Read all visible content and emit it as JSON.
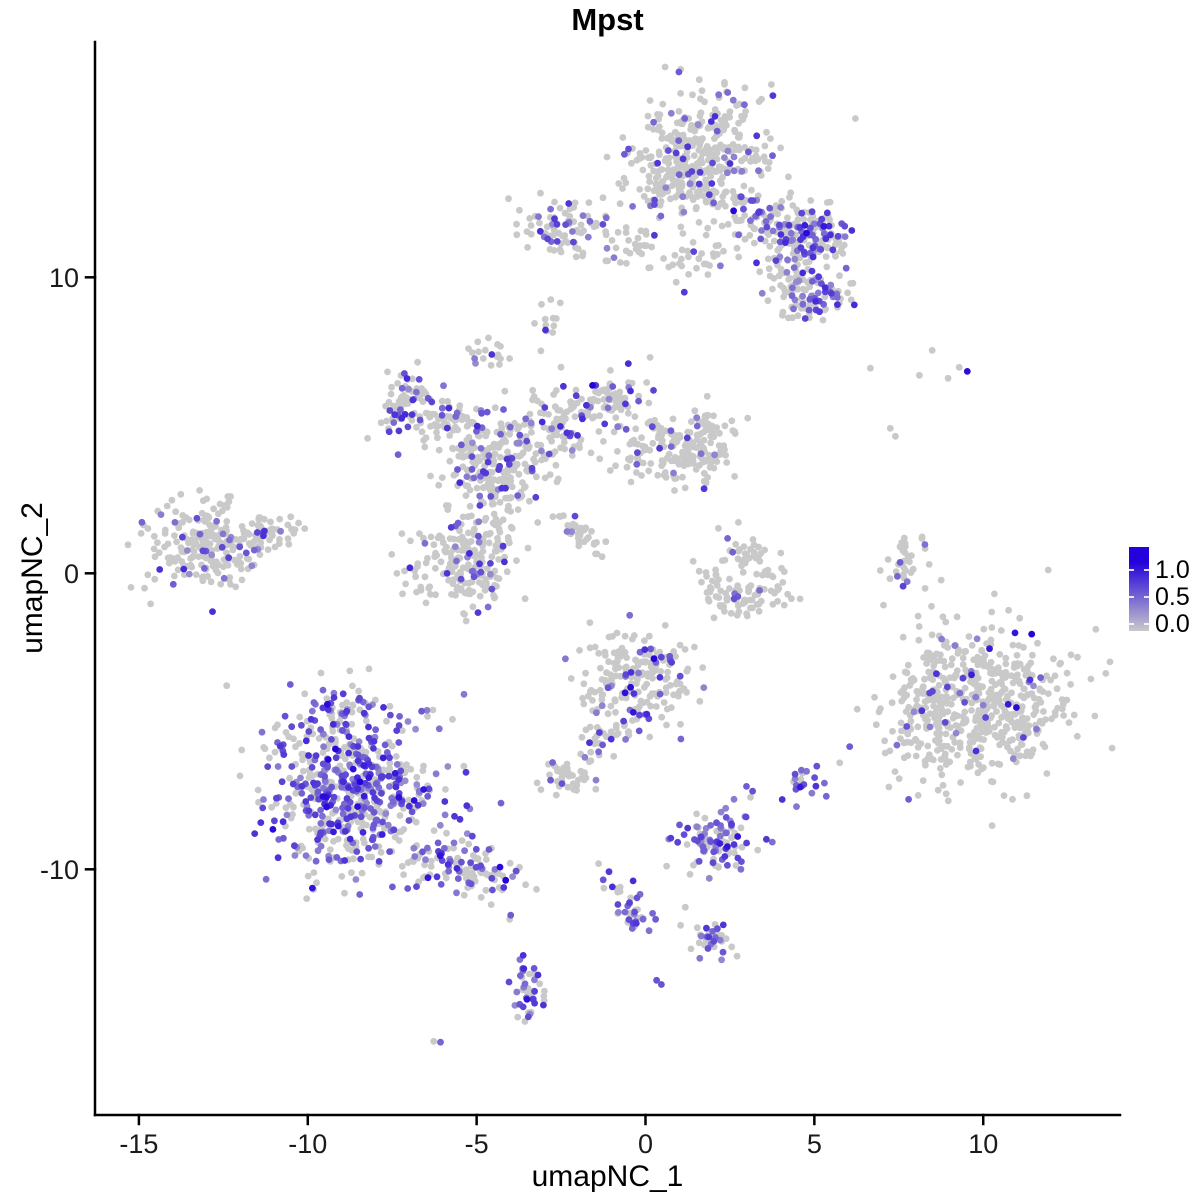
{
  "title": "Mpst",
  "axes": {
    "x": {
      "label": "umapNC_1",
      "ticks": [
        -15,
        -10,
        -5,
        0,
        5,
        10
      ]
    },
    "y": {
      "label": "umapNC_2",
      "ticks": [
        -10,
        0,
        10
      ]
    }
  },
  "legend": {
    "tick_labels": [
      "1.0",
      "0.5",
      "0.0"
    ],
    "tick_values": [
      1.0,
      0.5,
      0.0
    ],
    "color_low": "#c9c9c9",
    "color_high": "#2302db"
  },
  "style": {
    "point_color_zero": "#c9c9c9",
    "point_color_max": "#2302db",
    "axis_color": "#000000",
    "tick_label_color": "#1a1a1a",
    "background": "#ffffff"
  },
  "chart_data": {
    "type": "scatter",
    "title": "Mpst",
    "xlabel": "umapNC_1",
    "ylabel": "umapNC_2",
    "xlim": [
      -16.3,
      14.05
    ],
    "ylim": [
      -18.3,
      17.95
    ],
    "x_ticks": [
      -15,
      -10,
      -5,
      0,
      5,
      10
    ],
    "y_ticks": [
      -10,
      0,
      10
    ],
    "grid": false,
    "legend_position": "right",
    "color_scale": {
      "low": "#c9c9c9",
      "high": "#2302db",
      "ticks": [
        1.0,
        0.5,
        0.0
      ],
      "min": 0.0,
      "max": 1.0
    },
    "point_radius_px": 3.4,
    "seed": 42,
    "clusters": [
      {
        "name": "top-main",
        "shape": "blob",
        "cx": 1.63,
        "cy": 14.29,
        "sx": 1.07,
        "sy": 1.01,
        "n": 300,
        "fe": 0.12,
        "fh": 0.01
      },
      {
        "name": "top-left-lobe",
        "shape": "blob",
        "cx": 0.74,
        "cy": 13.11,
        "sx": 0.74,
        "sy": 0.68,
        "n": 110,
        "fe": 0.1,
        "fh": 0.005
      },
      {
        "name": "top-arm",
        "shape": "line",
        "x1": 2.51,
        "y1": 12.43,
        "x2": 5.18,
        "y2": 11.25,
        "w": 0.55,
        "n": 150,
        "fe": 0.3,
        "fh": 0.01
      },
      {
        "name": "top-right-lobe",
        "shape": "blob",
        "cx": 5.03,
        "cy": 11.42,
        "sx": 0.53,
        "sy": 0.47,
        "n": 80,
        "fe": 0.45,
        "fh": 0.02
      },
      {
        "name": "top-lower-lobe",
        "shape": "blob",
        "cx": 4.94,
        "cy": 9.56,
        "sx": 0.62,
        "sy": 0.47,
        "n": 90,
        "fe": 0.35,
        "fh": 0.01
      },
      {
        "name": "top-neck",
        "shape": "line",
        "x1": 4.08,
        "y1": 10.74,
        "x2": 4.64,
        "y2": 9.29,
        "w": 0.4,
        "n": 40,
        "fe": 0.2,
        "fh": 0
      },
      {
        "name": "top-bridge",
        "shape": "line",
        "x1": -1.18,
        "y1": 11.18,
        "x2": 0.3,
        "y2": 10.98,
        "w": 0.3,
        "n": 25,
        "fe": 0.05,
        "fh": 0
      },
      {
        "name": "top-underscatter",
        "shape": "blob",
        "cx": 1.42,
        "cy": 10.57,
        "sx": 0.62,
        "sy": 0.41,
        "n": 35,
        "fe": 0.1,
        "fh": 0
      },
      {
        "name": "upper-left-small",
        "shape": "blob",
        "cx": -2.37,
        "cy": 11.59,
        "sx": 0.65,
        "sy": 0.44,
        "n": 85,
        "fe": 0.22,
        "fh": 0
      },
      {
        "name": "tiny-blob-left",
        "shape": "blob",
        "cx": -2.9,
        "cy": 8.68,
        "sx": 0.21,
        "sy": 0.3,
        "n": 12,
        "fe": 0.1,
        "fh": 0
      },
      {
        "name": "mid-ul-lobe",
        "shape": "blob",
        "cx": -7.1,
        "cy": 5.57,
        "sx": 0.47,
        "sy": 0.61,
        "n": 80,
        "fe": 0.3,
        "fh": 0
      },
      {
        "name": "mid-bridge",
        "shape": "line",
        "x1": -6.42,
        "y1": 5.03,
        "x2": -5.24,
        "y2": 5.17,
        "w": 0.35,
        "n": 45,
        "fe": 0.1,
        "fh": 0
      },
      {
        "name": "mid-core",
        "shape": "blob",
        "cx": -4.29,
        "cy": 3.99,
        "sx": 0.83,
        "sy": 0.68,
        "n": 200,
        "fe": 0.2,
        "fh": 0.005
      },
      {
        "name": "mid-top-blob",
        "shape": "blob",
        "cx": -4.59,
        "cy": 7.53,
        "sx": 0.3,
        "sy": 0.27,
        "n": 18,
        "fe": 0.3,
        "fh": 0
      },
      {
        "name": "mid-column",
        "shape": "line",
        "x1": -4.14,
        "y1": 3.41,
        "x2": -5.03,
        "y2": 0.61,
        "w": 0.6,
        "n": 120,
        "fe": 0.15,
        "fh": 0
      },
      {
        "name": "mid-lower-lobe",
        "shape": "blob",
        "cx": -5.53,
        "cy": 0.1,
        "sx": 0.8,
        "sy": 0.74,
        "n": 150,
        "fe": 0.12,
        "fh": 0
      },
      {
        "name": "mid-branch-ne",
        "shape": "line",
        "x1": -2.75,
        "y1": 4.43,
        "x2": -1.15,
        "y2": 6.18,
        "w": 0.4,
        "n": 80,
        "fe": 0.15,
        "fh": 0
      },
      {
        "name": "mid-up-blob",
        "shape": "blob",
        "cx": -0.74,
        "cy": 5.84,
        "sx": 0.41,
        "sy": 0.41,
        "n": 50,
        "fe": 0.15,
        "fh": 0
      },
      {
        "name": "mid-arm-east",
        "shape": "line",
        "x1": -0.8,
        "y1": 3.99,
        "x2": 1.33,
        "y2": 4.43,
        "w": 0.5,
        "n": 80,
        "fe": 0.08,
        "fh": 0
      },
      {
        "name": "mid-east-blob",
        "shape": "blob",
        "cx": 1.63,
        "cy": 4.26,
        "sx": 0.59,
        "sy": 0.57,
        "n": 120,
        "fe": 0.05,
        "fh": 0
      },
      {
        "name": "mid-streak",
        "shape": "line",
        "x1": -2.63,
        "y1": 1.93,
        "x2": -1.33,
        "y2": 0.68,
        "w": 0.18,
        "n": 40,
        "fe": 0.06,
        "fh": 0
      },
      {
        "name": "mid-upper-scatter",
        "shape": "blob",
        "cx": -2.96,
        "cy": 5.68,
        "sx": 0.53,
        "sy": 0.68,
        "n": 25,
        "fe": 0.1,
        "fh": 0
      },
      {
        "name": "far-left",
        "shape": "blob",
        "cx": -12.87,
        "cy": 0.95,
        "sx": 0.95,
        "sy": 0.74,
        "n": 230,
        "fe": 0.13,
        "fh": 0
      },
      {
        "name": "far-left-tip",
        "shape": "line",
        "x1": -11.75,
        "y1": 1.25,
        "x2": -10.5,
        "y2": 1.55,
        "w": 0.3,
        "n": 35,
        "fe": 0.1,
        "fh": 0
      },
      {
        "name": "arc-left-seg",
        "shape": "line",
        "x1": 1.72,
        "y1": 0.37,
        "x2": 2.54,
        "y2": -1.11,
        "w": 0.35,
        "n": 40,
        "fe": 0.03,
        "fh": 0
      },
      {
        "name": "arc-bottom-seg",
        "shape": "line",
        "x1": 2.54,
        "y1": -1.11,
        "x2": 4.23,
        "y2": -0.17,
        "w": 0.35,
        "n": 55,
        "fe": 0.02,
        "fh": 0
      },
      {
        "name": "arc-top-blob",
        "shape": "blob",
        "cx": 2.99,
        "cy": 0.57,
        "sx": 0.35,
        "sy": 0.3,
        "n": 30,
        "fe": 0.03,
        "fh": 0
      },
      {
        "name": "right-mini-arc",
        "shape": "line",
        "x1": 8.02,
        "y1": 1.32,
        "x2": 7.49,
        "y2": -0.17,
        "w": 0.25,
        "n": 28,
        "fe": 0.08,
        "fh": 0
      },
      {
        "name": "right-main",
        "shape": "blob",
        "cx": 10.06,
        "cy": -4.39,
        "sx": 1.3,
        "sy": 1.35,
        "n": 520,
        "fe": 0.065,
        "fh": 0.004
      },
      {
        "name": "right-west-lobe",
        "shape": "blob",
        "cx": 8.2,
        "cy": -4.9,
        "sx": 0.47,
        "sy": 0.88,
        "n": 70,
        "fe": 0.1,
        "fh": 0
      },
      {
        "name": "bottom-left-main",
        "shape": "blob",
        "cx": -8.58,
        "cy": -7.26,
        "sx": 1.33,
        "sy": 1.42,
        "n": 600,
        "fe": 0.52,
        "fh": 0.035
      },
      {
        "name": "bottom-left-tail",
        "shape": "line",
        "x1": -6.66,
        "y1": -9.43,
        "x2": -3.85,
        "y2": -10.44,
        "w": 0.45,
        "n": 110,
        "fe": 0.45,
        "fh": 0.03
      },
      {
        "name": "bottom-left-tip",
        "shape": "blob",
        "cx": -8.88,
        "cy": -4.8,
        "sx": 0.5,
        "sy": 0.4,
        "n": 40,
        "fe": 0.5,
        "fh": 0.03
      },
      {
        "name": "center-low",
        "shape": "blob",
        "cx": -0.27,
        "cy": -3.55,
        "sx": 0.83,
        "sy": 0.81,
        "n": 200,
        "fe": 0.15,
        "fh": 0.005
      },
      {
        "name": "center-low-arm",
        "shape": "line",
        "x1": -0.68,
        "y1": -5.03,
        "x2": -1.72,
        "y2": -6.18,
        "w": 0.3,
        "n": 35,
        "fe": 0.2,
        "fh": 0
      },
      {
        "name": "small-gray-blob",
        "shape": "blob",
        "cx": -2.34,
        "cy": -6.79,
        "sx": 0.38,
        "sy": 0.34,
        "n": 40,
        "fe": 0.08,
        "fh": 0
      },
      {
        "name": "purple-knot",
        "shape": "blob",
        "cx": 4.7,
        "cy": -7.23,
        "sx": 0.27,
        "sy": 0.37,
        "n": 22,
        "fe": 0.75,
        "fh": 0.08
      },
      {
        "name": "bottom-center",
        "shape": "blob",
        "cx": 2.13,
        "cy": -9.09,
        "sx": 0.59,
        "sy": 0.54,
        "n": 100,
        "fe": 0.55,
        "fh": 0.02
      },
      {
        "name": "bottom-streak",
        "shape": "line",
        "x1": -0.98,
        "y1": -10.07,
        "x2": -0.21,
        "y2": -11.99,
        "w": 0.25,
        "n": 40,
        "fe": 0.45,
        "fh": 0
      },
      {
        "name": "bottom-triangle",
        "shape": "blob",
        "cx": 1.98,
        "cy": -12.4,
        "sx": 0.33,
        "sy": 0.27,
        "n": 32,
        "fe": 0.45,
        "fh": 0
      },
      {
        "name": "hook-upper",
        "shape": "line",
        "x1": -3.67,
        "y1": -13.21,
        "x2": -3.31,
        "y2": -14.09,
        "w": 0.25,
        "n": 20,
        "fe": 0.55,
        "fh": 0
      },
      {
        "name": "hook-lower",
        "shape": "line",
        "x1": -3.31,
        "y1": -14.09,
        "x2": -3.79,
        "y2": -15.07,
        "w": 0.25,
        "n": 22,
        "fe": 0.6,
        "fh": 0.05
      }
    ],
    "singletons": [
      [
        -1.57,
        6.35,
        1.0
      ],
      [
        6.66,
        6.93,
        0
      ],
      [
        8.11,
        6.69,
        0
      ],
      [
        8.49,
        7.53,
        0
      ],
      [
        8.96,
        6.59,
        0
      ],
      [
        9.29,
        6.96,
        0
      ],
      [
        9.53,
        6.82,
        0.95
      ],
      [
        7.25,
        4.9,
        0
      ],
      [
        7.4,
        4.63,
        0
      ],
      [
        2.43,
        1.18,
        0.5
      ],
      [
        2.16,
        1.52,
        0
      ],
      [
        2.75,
        1.72,
        0
      ],
      [
        7.54,
        0.37,
        0.55
      ],
      [
        7.46,
        -0.1,
        0.5
      ],
      [
        8.28,
        0.84,
        0
      ],
      [
        8.4,
        0.3,
        0
      ],
      [
        8.28,
        -0.51,
        0
      ],
      [
        -4.14,
        -10.37,
        1.0
      ],
      [
        -0.44,
        -3.85,
        0.95
      ],
      [
        -0.36,
        -4.7,
        0.9
      ],
      [
        -2.75,
        -6.39,
        0.5
      ],
      [
        -2.81,
        -6.99,
        0.55
      ],
      [
        2.99,
        -7.2,
        0.55
      ],
      [
        3.17,
        -7.36,
        0.6
      ],
      [
        3.11,
        -7.57,
        0
      ],
      [
        0.21,
        -11.49,
        0.5
      ],
      [
        0.3,
        -11.69,
        0.55
      ],
      [
        1.04,
        -11.89,
        0
      ],
      [
        1.18,
        -11.28,
        0
      ],
      [
        0.33,
        -13.75,
        0.6
      ],
      [
        0.47,
        -13.89,
        0.6
      ],
      [
        -6.27,
        -15.81,
        0
      ],
      [
        -6.07,
        -15.84,
        0.5
      ],
      [
        -3.99,
        -11.55,
        0.55
      ],
      [
        -4.02,
        -11.69,
        0
      ],
      [
        -3.49,
        11.01,
        0
      ]
    ]
  }
}
